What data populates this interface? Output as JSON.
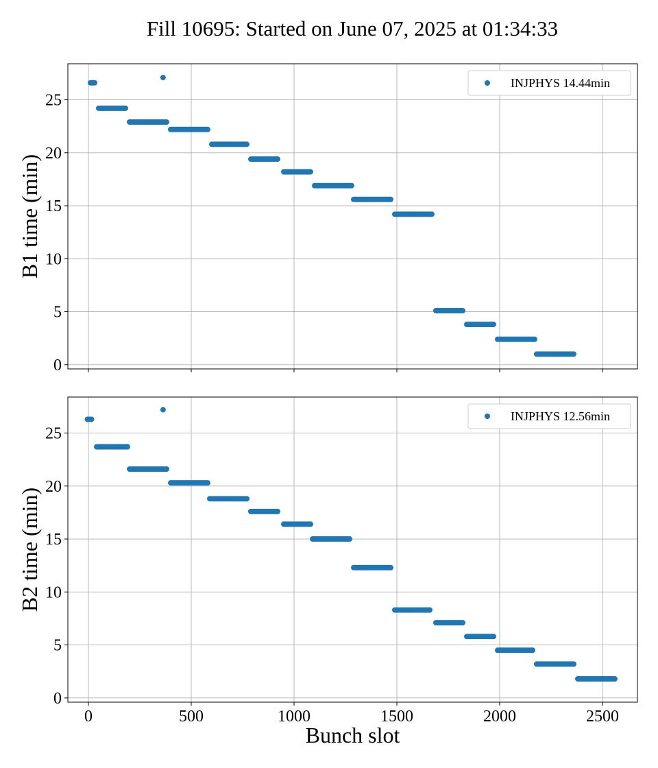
{
  "figure": {
    "title": "Fill 10695: Started on June 07, 2025 at 01:34:33"
  },
  "chart_data": [
    {
      "type": "scatter",
      "ylabel": "B1 time (min)",
      "xlabel": "",
      "xlim": [
        -100,
        2670
      ],
      "ylim": [
        -0.4,
        28.4
      ],
      "xticks": [
        0,
        500,
        1000,
        1500,
        2000,
        2500
      ],
      "yticks": [
        0,
        5,
        10,
        15,
        20,
        25
      ],
      "show_x_tick_labels": false,
      "grid": true,
      "legend_position": "top-right",
      "color": "#1f77b4",
      "series": [
        {
          "name": "INJPHYS 14.44min",
          "segments": [
            {
              "x_start": 10,
              "x_end": 30,
              "y": 26.6
            },
            {
              "x_start": 363,
              "x_end": 363,
              "y": 27.1
            },
            {
              "x_start": 50,
              "x_end": 180,
              "y": 24.2
            },
            {
              "x_start": 200,
              "x_end": 380,
              "y": 22.9
            },
            {
              "x_start": 400,
              "x_end": 580,
              "y": 22.2
            },
            {
              "x_start": 600,
              "x_end": 770,
              "y": 20.8
            },
            {
              "x_start": 790,
              "x_end": 920,
              "y": 19.4
            },
            {
              "x_start": 950,
              "x_end": 1080,
              "y": 18.2
            },
            {
              "x_start": 1100,
              "x_end": 1280,
              "y": 16.9
            },
            {
              "x_start": 1290,
              "x_end": 1470,
              "y": 15.6
            },
            {
              "x_start": 1490,
              "x_end": 1670,
              "y": 14.2
            },
            {
              "x_start": 1690,
              "x_end": 1820,
              "y": 5.1
            },
            {
              "x_start": 1840,
              "x_end": 1970,
              "y": 3.8
            },
            {
              "x_start": 1990,
              "x_end": 2170,
              "y": 2.4
            },
            {
              "x_start": 2180,
              "x_end": 2360,
              "y": 1.0
            }
          ]
        }
      ]
    },
    {
      "type": "scatter",
      "ylabel": "B2 time (min)",
      "xlabel": "Bunch slot",
      "xlim": [
        -100,
        2670
      ],
      "ylim": [
        -0.4,
        28.4
      ],
      "xticks": [
        0,
        500,
        1000,
        1500,
        2000,
        2500
      ],
      "yticks": [
        0,
        5,
        10,
        15,
        20,
        25
      ],
      "show_x_tick_labels": true,
      "grid": true,
      "legend_position": "top-right",
      "color": "#1f77b4",
      "series": [
        {
          "name": "INJPHYS 12.56min",
          "segments": [
            {
              "x_start": -5,
              "x_end": 15,
              "y": 26.3
            },
            {
              "x_start": 363,
              "x_end": 363,
              "y": 27.2
            },
            {
              "x_start": 40,
              "x_end": 190,
              "y": 23.7
            },
            {
              "x_start": 200,
              "x_end": 380,
              "y": 21.6
            },
            {
              "x_start": 400,
              "x_end": 580,
              "y": 20.3
            },
            {
              "x_start": 590,
              "x_end": 770,
              "y": 18.8
            },
            {
              "x_start": 790,
              "x_end": 920,
              "y": 17.6
            },
            {
              "x_start": 950,
              "x_end": 1080,
              "y": 16.4
            },
            {
              "x_start": 1090,
              "x_end": 1270,
              "y": 15.0
            },
            {
              "x_start": 1290,
              "x_end": 1470,
              "y": 12.3
            },
            {
              "x_start": 1490,
              "x_end": 1660,
              "y": 8.3
            },
            {
              "x_start": 1690,
              "x_end": 1820,
              "y": 7.1
            },
            {
              "x_start": 1840,
              "x_end": 1970,
              "y": 5.8
            },
            {
              "x_start": 1990,
              "x_end": 2160,
              "y": 4.5
            },
            {
              "x_start": 2180,
              "x_end": 2360,
              "y": 3.2
            },
            {
              "x_start": 2380,
              "x_end": 2560,
              "y": 1.8
            }
          ]
        }
      ]
    }
  ]
}
